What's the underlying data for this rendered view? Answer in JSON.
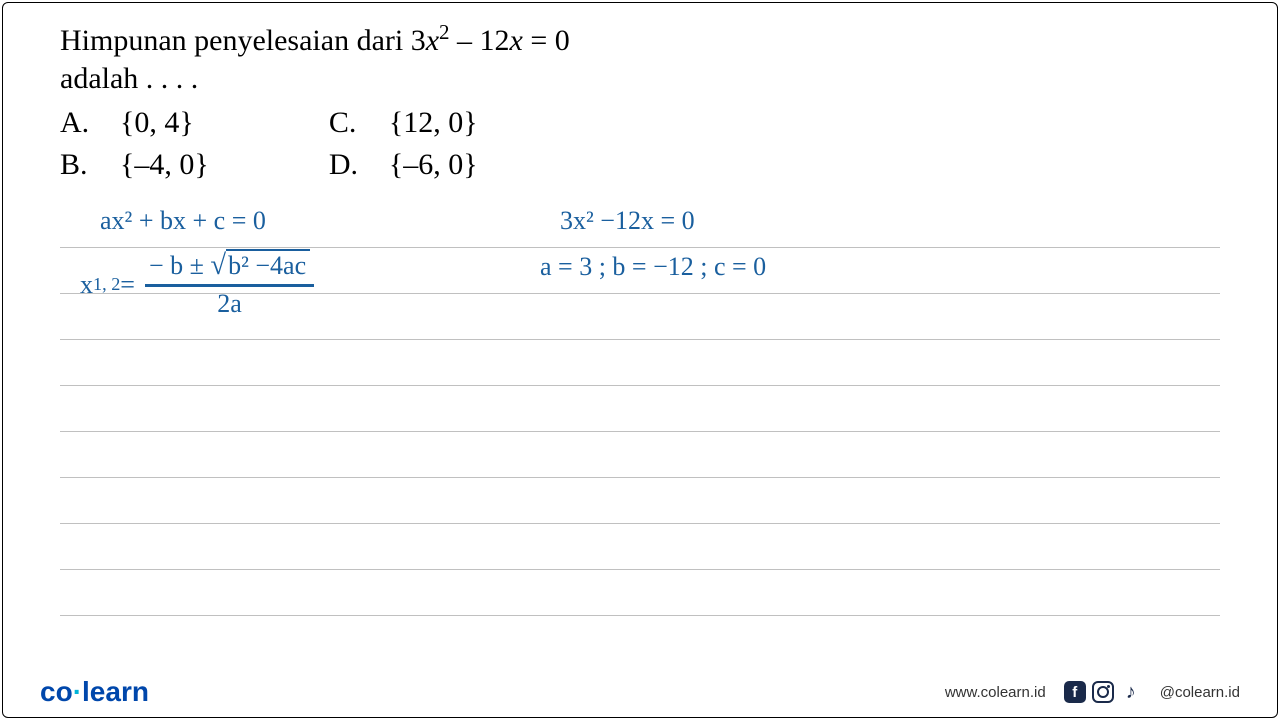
{
  "question": {
    "line1_pre": "Himpunan penyelesaian dari 3",
    "line1_var": "x",
    "line1_exp": "2",
    "line1_post": " – 12",
    "line1_var2": "x",
    "line1_end": " = 0",
    "line2": "adalah . . . ."
  },
  "options": {
    "a_label": "A.",
    "a_value": "{0, 4}",
    "b_label": "B.",
    "b_value": "{–4, 0}",
    "c_label": "C.",
    "c_value": "{12, 0}",
    "d_label": "D.",
    "d_value": "{–6, 0}"
  },
  "handwriting": {
    "eq1_left": "ax² + bx  + c  = 0",
    "eq1_right": "3x² −12x  = 0",
    "eq2_left_var": "x",
    "eq2_left_sub": "1, 2",
    "eq2_left_eq": "  =  ",
    "eq2_num_pre": "− b ± ",
    "eq2_sqrt_content": "b² −4ac",
    "eq2_den": "2a",
    "eq2_right": "a = 3  ;  b = −12  ;  c = 0",
    "color": "#1a5f9e"
  },
  "footer": {
    "logo_co": "co",
    "logo_dot": "·",
    "logo_learn": "learn",
    "url": "www.colearn.id",
    "handle": "@colearn.id"
  },
  "paper": {
    "line_count": 9,
    "line_color": "#c0c0c0"
  }
}
